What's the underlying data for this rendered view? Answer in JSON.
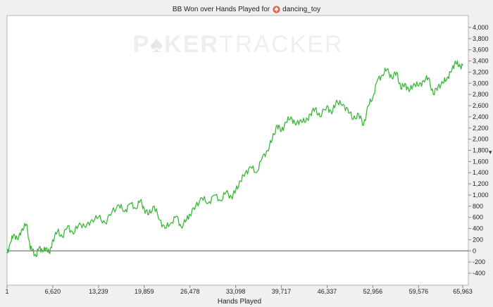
{
  "header": {
    "title_prefix": "BB Won over Hands Played for",
    "player_name": "dancing_toy",
    "player_icon": "spade-icon"
  },
  "watermark": {
    "left": "P",
    "mid": "KER",
    "right": "TRACKER"
  },
  "side_mark": "▾",
  "chart_data": {
    "type": "line",
    "title": "BB Won over Hands Played for dancing_toy",
    "xlabel": "Hands Played",
    "ylabel": "",
    "xlim": [
      1,
      65963
    ],
    "ylim": [
      -400,
      4000
    ],
    "x_ticks": [
      "1",
      "6,620",
      "13,239",
      "19,859",
      "26,478",
      "33,098",
      "39,717",
      "46,337",
      "52,956",
      "59,576",
      "65,963"
    ],
    "y_ticks": [
      "-400",
      "-200",
      "0",
      "200",
      "400",
      "600",
      "800",
      "1,000",
      "1,200",
      "1,400",
      "1,600",
      "1,800",
      "2,000",
      "2,200",
      "2,400",
      "2,600",
      "2,800",
      "3,000",
      "3,200",
      "3,400",
      "3,600",
      "3,800",
      "4,000"
    ],
    "grid": false,
    "zero_line": true,
    "line_color": "#3cb83c",
    "series": [
      {
        "x": [
          1,
          500,
          1000,
          1600,
          2200,
          2800,
          3300,
          3700,
          4200,
          4700,
          5200,
          5700,
          6200,
          6620,
          7300,
          8000,
          8800,
          9600,
          10500,
          11400,
          12300,
          13239,
          14200,
          15200,
          16200,
          17000,
          17800,
          18600,
          19300,
          19859,
          20500,
          21300,
          22100,
          22900,
          23700,
          24500,
          25200,
          26000,
          26478,
          27300,
          28200,
          29100,
          30000,
          30900,
          31700,
          32500,
          33098,
          33800,
          34500,
          35300,
          36100,
          36900,
          37700,
          38400,
          39100,
          39717,
          40400,
          41100,
          41800,
          42500,
          43200,
          43900,
          44600,
          45300,
          46337,
          47000,
          47700,
          48500,
          49300,
          50100,
          50900,
          51600,
          52300,
          52956,
          53600,
          54300,
          55000,
          55700,
          56400,
          57000,
          57600,
          58200,
          58900,
          59576,
          60300,
          61000,
          61700,
          62400,
          63100,
          63700,
          64300,
          64900,
          65400,
          65963
        ],
        "y": [
          -50,
          150,
          300,
          200,
          400,
          480,
          100,
          0,
          -100,
          80,
          -20,
          60,
          -50,
          200,
          350,
          250,
          450,
          300,
          500,
          420,
          560,
          600,
          500,
          700,
          820,
          700,
          850,
          760,
          900,
          750,
          650,
          800,
          550,
          400,
          500,
          620,
          430,
          560,
          650,
          800,
          950,
          850,
          1000,
          900,
          1050,
          960,
          1080,
          1250,
          1400,
          1500,
          1400,
          1650,
          1800,
          2000,
          2250,
          2150,
          2300,
          2400,
          2250,
          2350,
          2300,
          2450,
          2550,
          2400,
          2600,
          2450,
          2700,
          2600,
          2550,
          2350,
          2450,
          2250,
          2600,
          2750,
          3050,
          3150,
          3250,
          3100,
          3200,
          2900,
          3000,
          2850,
          3000,
          2950,
          3050,
          3100,
          2800,
          2950,
          3000,
          3100,
          3200,
          3400,
          3300,
          3320
        ]
      }
    ]
  }
}
